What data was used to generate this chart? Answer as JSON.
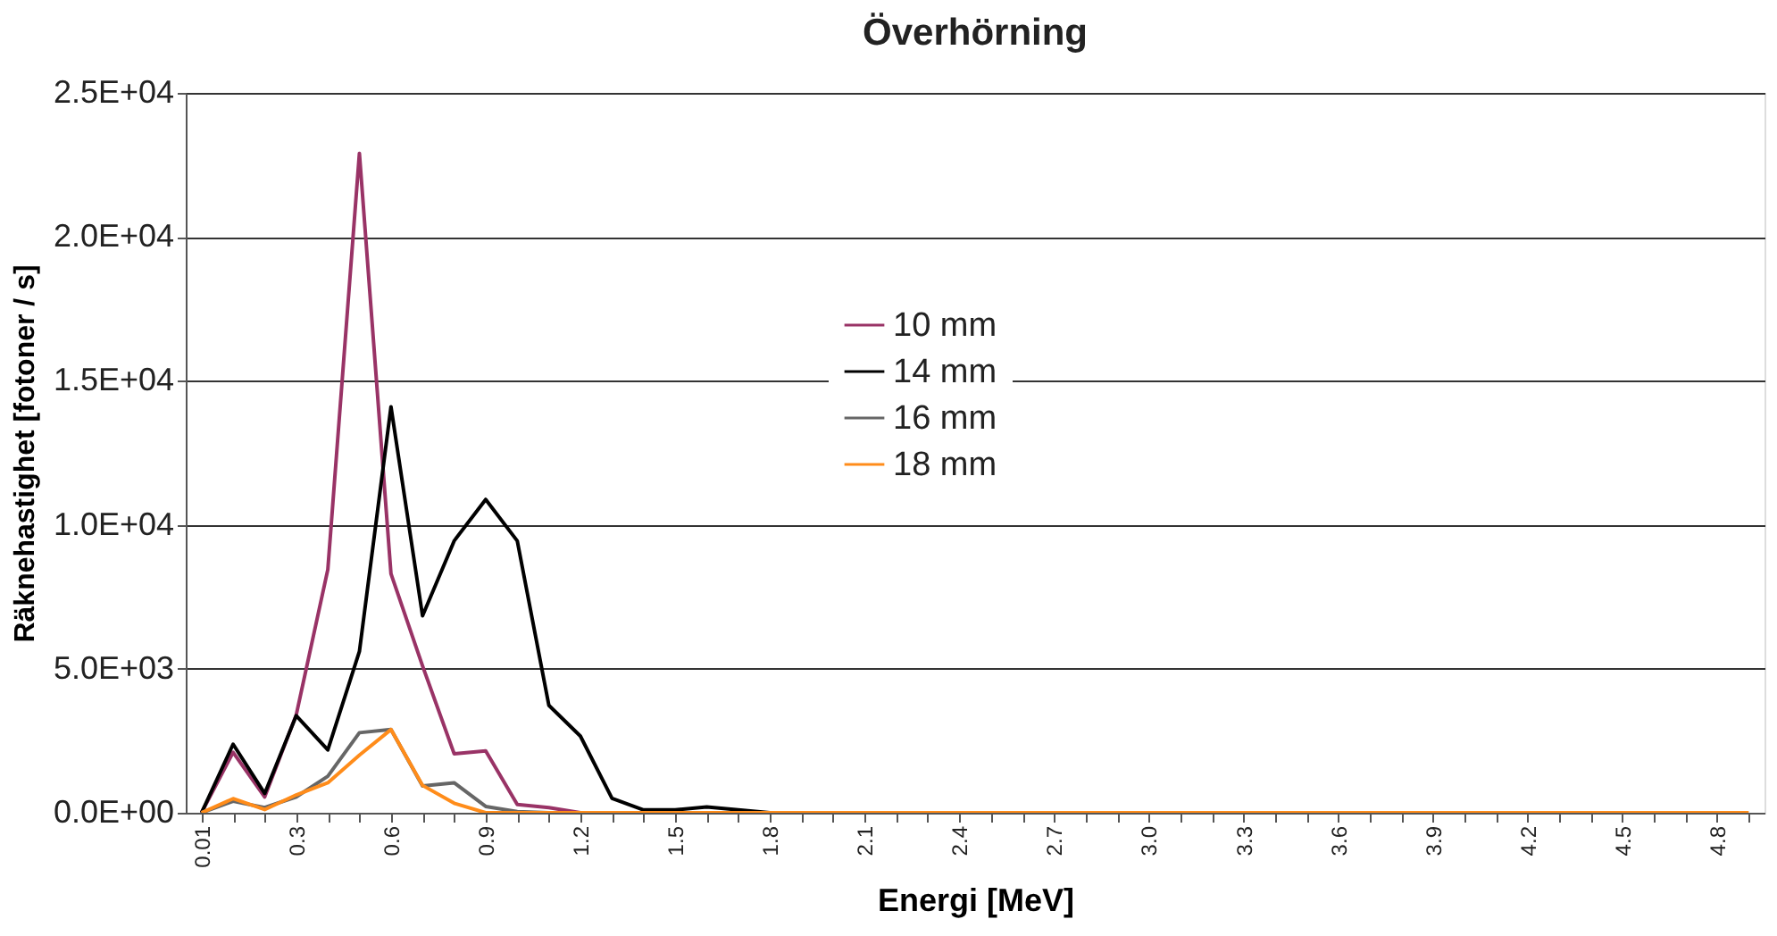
{
  "chart_data": {
    "type": "line",
    "title": "Överhörning",
    "xlabel": "Energi [MeV]",
    "ylabel": "Räknehastighet [fotoner / s]",
    "categories": [
      "0.01",
      null,
      null,
      "0.3",
      null,
      null,
      "0.6",
      null,
      null,
      "0.9",
      null,
      null,
      "1.2",
      null,
      null,
      "1.5",
      null,
      null,
      "1.8",
      null,
      null,
      "2.1",
      null,
      null,
      "2.4",
      null,
      null,
      "2.7",
      null,
      null,
      "3.0",
      null,
      null,
      "3.3",
      null,
      null,
      "3.6",
      null,
      null,
      "3.9",
      null,
      null,
      "4.2",
      null,
      null,
      "4.5",
      null,
      null,
      "4.8",
      null
    ],
    "series": [
      {
        "name": "10 mm",
        "color": "#993366",
        "values": [
          0,
          2100,
          550,
          3400,
          8450,
          22900,
          8300,
          5100,
          2050,
          2150,
          290,
          180,
          0,
          null,
          null,
          null,
          null,
          null,
          null,
          null,
          null,
          null,
          null,
          null,
          null,
          null,
          null,
          null,
          null,
          null,
          null,
          null,
          null,
          null,
          null,
          null,
          null,
          null,
          null,
          null,
          null,
          null,
          null,
          null,
          null,
          null,
          null,
          null,
          null,
          null
        ]
      },
      {
        "name": "14 mm",
        "color": "#000000",
        "values": [
          0,
          2380,
          670,
          3370,
          2180,
          5600,
          14100,
          6840,
          9440,
          10880,
          9440,
          3730,
          2660,
          500,
          100,
          100,
          200,
          100,
          0,
          null,
          null,
          null,
          null,
          null,
          null,
          null,
          null,
          null,
          null,
          null,
          null,
          null,
          null,
          null,
          null,
          null,
          null,
          null,
          null,
          null,
          null,
          null,
          null,
          null,
          null,
          null,
          null,
          null,
          null,
          null
        ]
      },
      {
        "name": "16 mm",
        "color": "#666666",
        "values": [
          0,
          400,
          180,
          550,
          1270,
          2780,
          2890,
          930,
          1040,
          220,
          40,
          0,
          null,
          null,
          null,
          null,
          null,
          null,
          null,
          null,
          null,
          null,
          null,
          null,
          null,
          null,
          null,
          null,
          null,
          null,
          null,
          null,
          null,
          null,
          null,
          null,
          null,
          null,
          null,
          null,
          null,
          null,
          null,
          null,
          null,
          null,
          null,
          null,
          null,
          null
        ]
      },
      {
        "name": "18 mm",
        "color": "#ff8c1a",
        "values": [
          0,
          490,
          110,
          620,
          1040,
          2000,
          2890,
          950,
          330,
          0,
          0,
          0,
          0,
          0,
          0,
          0,
          0,
          0,
          0,
          0,
          0,
          0,
          0,
          0,
          0,
          0,
          0,
          0,
          0,
          0,
          0,
          0,
          0,
          0,
          0,
          0,
          0,
          0,
          0,
          0,
          0,
          0,
          0,
          0,
          0,
          0,
          0,
          0,
          0,
          0
        ]
      }
    ],
    "ylim": [
      0,
      25000
    ],
    "yticks": [
      {
        "value": 0,
        "label": "0.0E+00"
      },
      {
        "value": 5000,
        "label": "5.0E+03"
      },
      {
        "value": 10000,
        "label": "1.0E+04"
      },
      {
        "value": 15000,
        "label": "1.5E+04"
      },
      {
        "value": 20000,
        "label": "2.0E+04"
      },
      {
        "value": 25000,
        "label": "2.5E+04"
      }
    ],
    "grid": "y",
    "legend": "center",
    "marker": "none",
    "line_style": "solid"
  }
}
